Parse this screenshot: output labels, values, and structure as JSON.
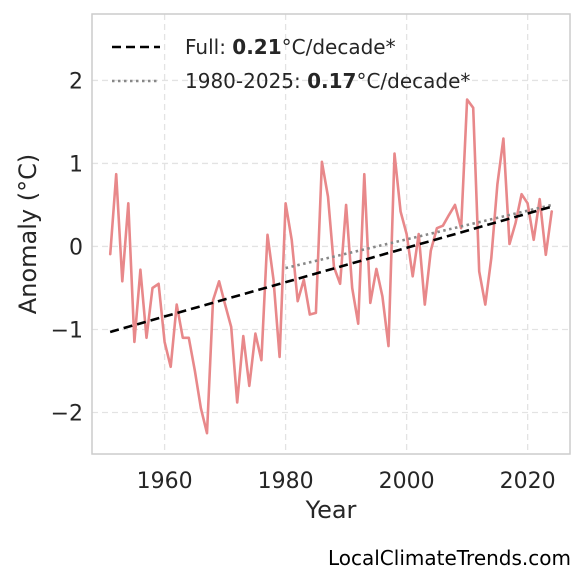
{
  "chart_data": {
    "type": "line",
    "title": "",
    "xlabel": "Year",
    "ylabel": "Anomaly (°C)",
    "xlim": [
      1948,
      2027
    ],
    "ylim": [
      -2.5,
      2.8
    ],
    "xticks": [
      1960,
      1980,
      2000,
      2020
    ],
    "xtick_labels": [
      "1960",
      "1980",
      "2000",
      "2020"
    ],
    "yticks": [
      -2,
      -1,
      0,
      1,
      2
    ],
    "ytick_labels": [
      "−2",
      "−1",
      "0",
      "1",
      "2"
    ],
    "grid": true,
    "legend_position": "top-left",
    "colors": {
      "series": "#e8888a",
      "full_trend": "#000000",
      "recent_trend": "#888888"
    },
    "series": [
      {
        "x": [
          1951,
          1952,
          1953,
          1954,
          1955,
          1956,
          1957,
          1958,
          1959,
          1960,
          1961,
          1962,
          1963,
          1964,
          1965,
          1966,
          1967,
          1968,
          1969,
          1970,
          1971,
          1972,
          1973,
          1974,
          1975,
          1976,
          1977,
          1978,
          1979,
          1980,
          1981,
          1982,
          1983,
          1984,
          1985,
          1986,
          1987,
          1988,
          1989,
          1990,
          1991,
          1992,
          1993,
          1994,
          1995,
          1996,
          1997,
          1998,
          1999,
          2000,
          2001,
          2002,
          2003,
          2004,
          2005,
          2006,
          2007,
          2008,
          2009,
          2010,
          2011,
          2012,
          2013,
          2014,
          2015,
          2016,
          2017,
          2018,
          2019,
          2020,
          2021,
          2022,
          2023,
          2024
        ],
        "values": [
          -0.1,
          0.87,
          -0.42,
          0.52,
          -1.15,
          -0.28,
          -1.1,
          -0.5,
          -0.45,
          -1.15,
          -1.45,
          -0.7,
          -1.1,
          -1.1,
          -1.5,
          -1.95,
          -2.25,
          -0.65,
          -0.42,
          -0.7,
          -0.97,
          -1.88,
          -1.08,
          -1.68,
          -1.05,
          -1.37,
          0.14,
          -0.4,
          -1.33,
          0.52,
          0.08,
          -0.66,
          -0.4,
          -0.82,
          -0.8,
          1.02,
          0.6,
          -0.25,
          -0.45,
          0.5,
          -0.5,
          -0.93,
          0.87,
          -0.68,
          -0.27,
          -0.6,
          -1.2,
          1.12,
          0.42,
          0.15,
          -0.36,
          0.15,
          -0.7,
          -0.05,
          0.22,
          0.25,
          0.38,
          0.5,
          0.22,
          1.77,
          1.67,
          -0.3,
          -0.7,
          -0.14,
          0.75,
          1.3,
          0.03,
          0.28,
          0.63,
          0.52,
          0.08,
          0.57,
          -0.1,
          0.43
        ]
      }
    ],
    "trend_lines": [
      {
        "name": "full",
        "x": [
          1951,
          2024
        ],
        "y": [
          -1.03,
          0.48
        ]
      },
      {
        "name": "recent",
        "x": [
          1980,
          2024
        ],
        "y": [
          -0.26,
          0.5
        ]
      }
    ]
  },
  "legend": {
    "full_prefix": "Full: ",
    "full_value": "0.21",
    "full_suffix": "°C/decade*",
    "recent_prefix": "1980-2025: ",
    "recent_value": "0.17",
    "recent_suffix": "°C/decade*"
  },
  "watermark": "LocalClimateTrends.com"
}
